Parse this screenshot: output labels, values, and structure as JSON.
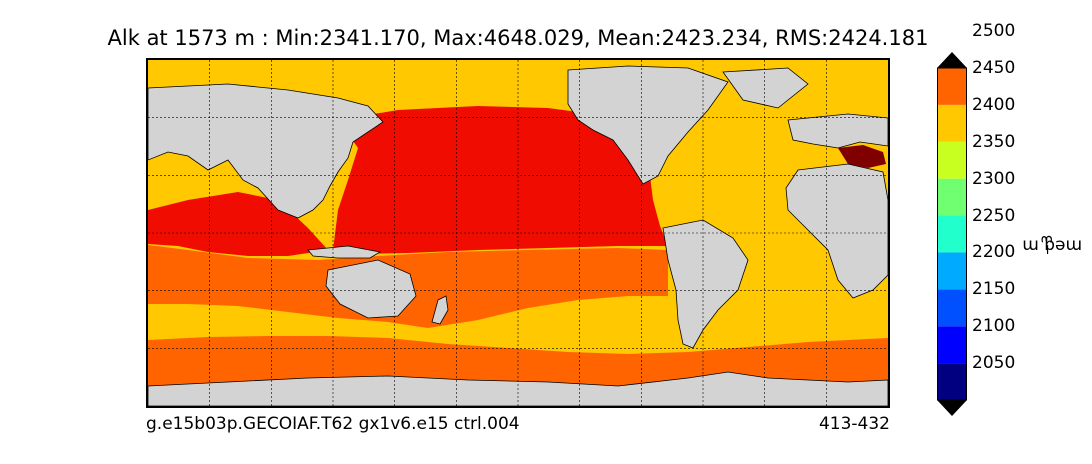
{
  "title": "Alk at 1573 m : Min:2341.170, Max:4648.029, Mean:2423.234, RMS:2424.181",
  "footer": {
    "case_name": "g.e15b03p.GECOIAF.T62 gx1v6.e15 ctrl.004",
    "years": "413-432"
  },
  "colorbar": {
    "label": "meq m",
    "label_exponent": "−3",
    "ticks": [
      "2050",
      "2100",
      "2150",
      "2200",
      "2250",
      "2300",
      "2350",
      "2400",
      "2450",
      "2500"
    ],
    "colors": [
      "#000080",
      "#0000ff",
      "#0050ff",
      "#00aaff",
      "#20ffcc",
      "#70ff70",
      "#c8ff20",
      "#ffc800",
      "#ff6400",
      "#f00c00",
      "#800000"
    ]
  },
  "map_colors": {
    "land": "#d3d3d3",
    "missing": "#ffffff",
    "level_2350_2400": "#ffc800",
    "level_2400_2450": "#ff6400",
    "level_2450_2500": "#f00c00",
    "level_above_2500": "#800000",
    "level_2300_2350": "#c8ff20"
  }
}
